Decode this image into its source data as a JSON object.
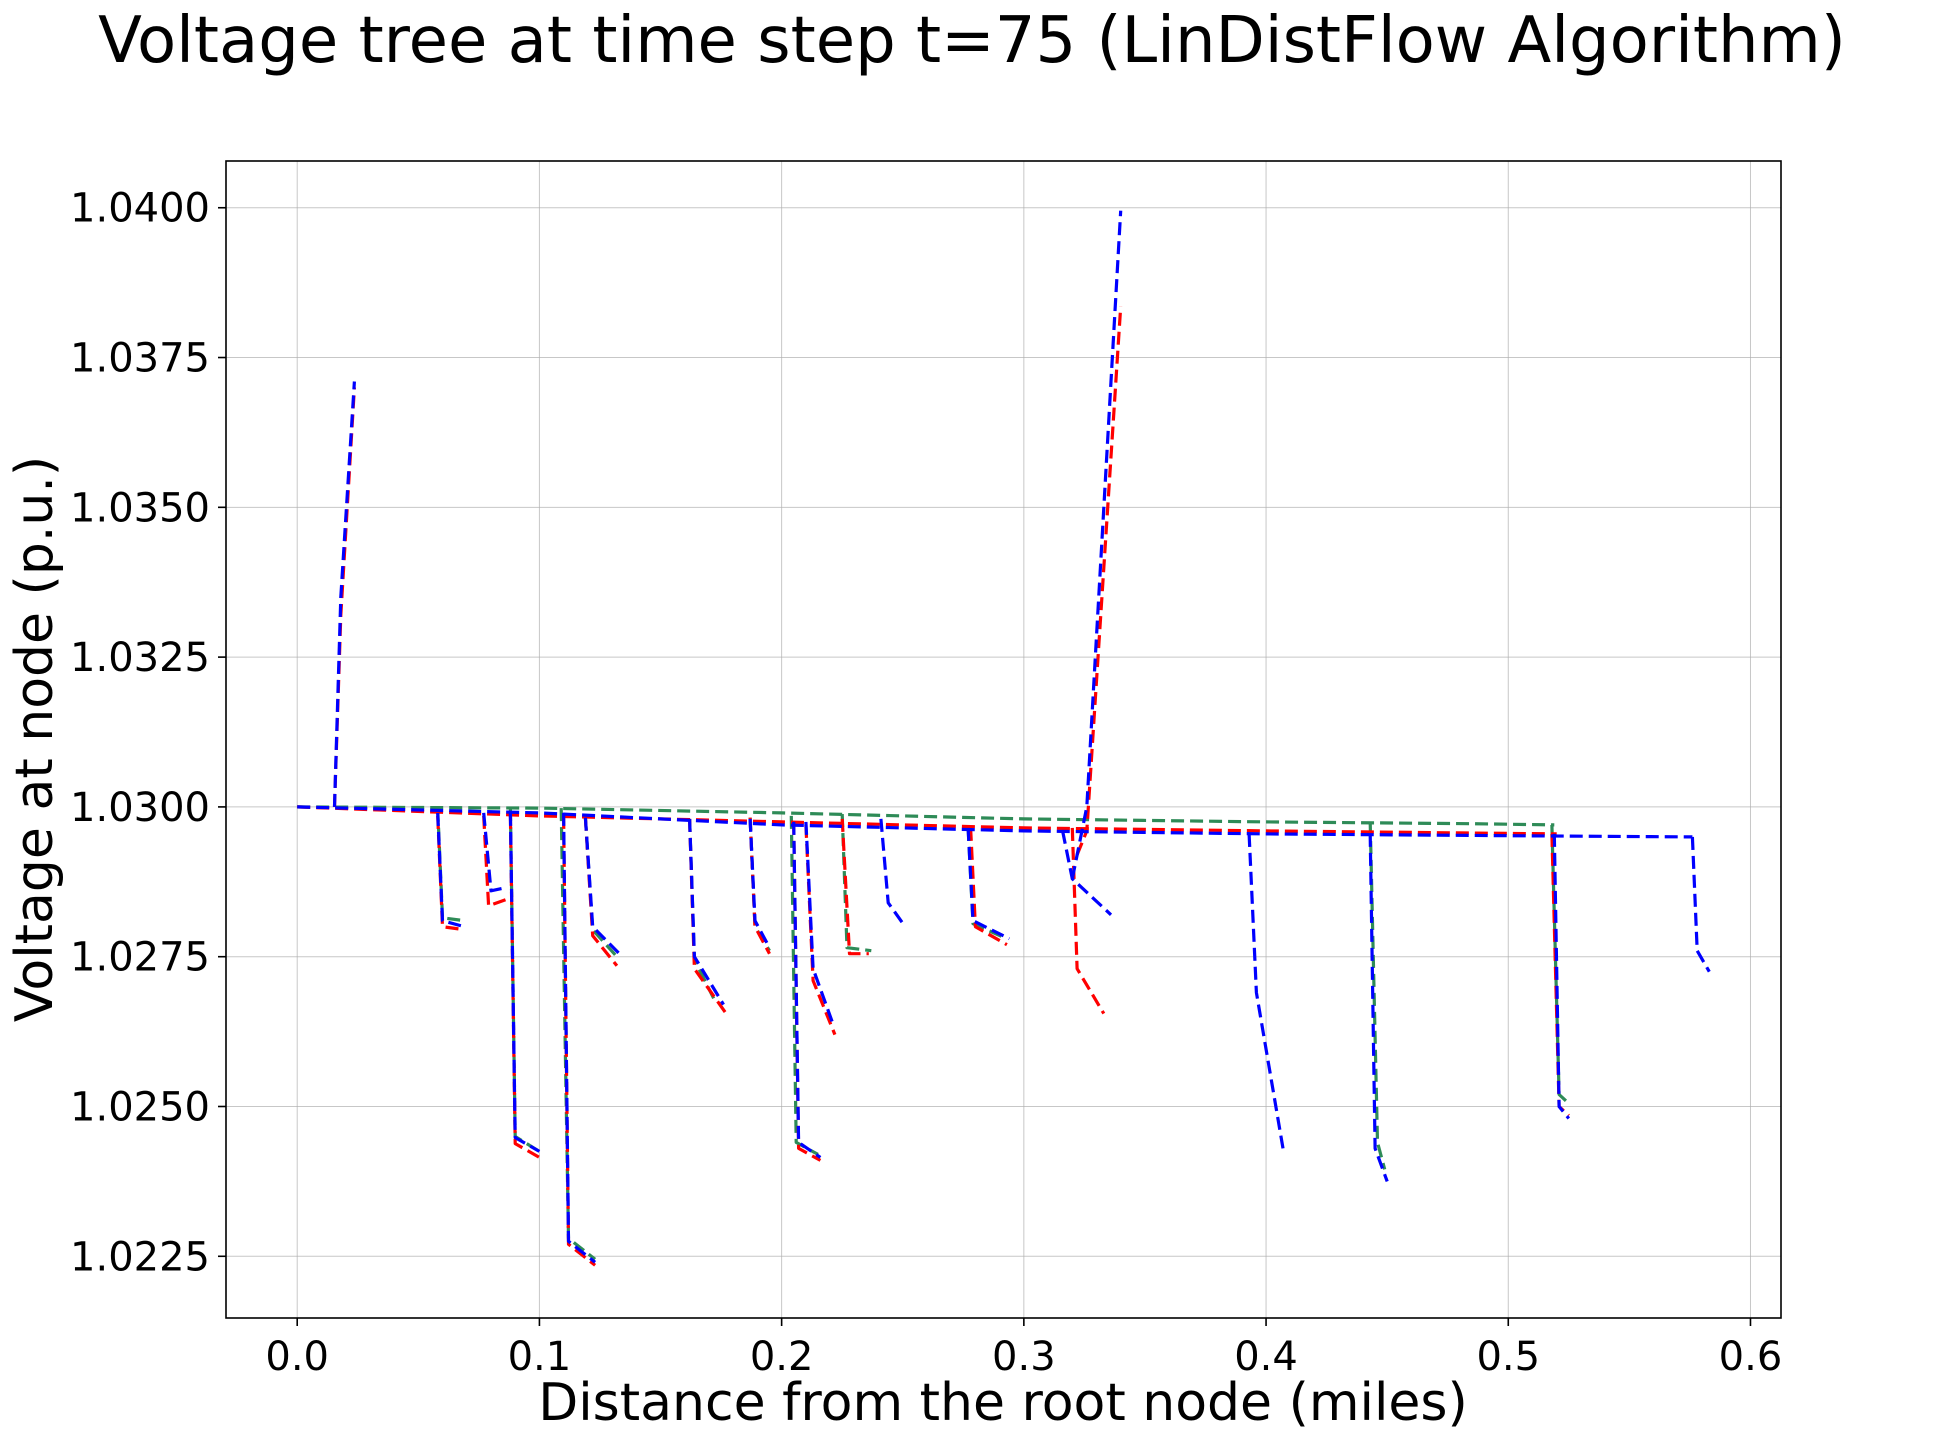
{
  "chart_data": {
    "type": "line",
    "title": "Voltage tree at time step t=75  (LinDistFlow Algorithm)",
    "xlabel": "Distance from the root node (miles)",
    "ylabel": "Voltage at node (p.u.)",
    "xlim": [
      -0.0294,
      0.6126
    ],
    "ylim": [
      1.02147,
      1.04078
    ],
    "xticks": [
      0.0,
      0.1,
      0.2,
      0.3,
      0.4,
      0.5,
      0.6
    ],
    "xtick_labels": [
      "0.0",
      "0.1",
      "0.2",
      "0.3",
      "0.4",
      "0.5",
      "0.6"
    ],
    "yticks": [
      1.0225,
      1.025,
      1.0275,
      1.03,
      1.0325,
      1.035,
      1.0375,
      1.04
    ],
    "ytick_labels": [
      "1.0225",
      "1.0250",
      "1.0275",
      "1.0300",
      "1.0325",
      "1.0350",
      "1.0375",
      "1.0400"
    ],
    "grid": true,
    "line_style": "dashed",
    "colors": {
      "phase_a": "#ff0000",
      "phase_b": "#2e8b57",
      "phase_c": "#0000ff"
    },
    "series": [
      {
        "color": "#2e8b57",
        "segments": [
          [
            [
              0.0,
              1.03
            ],
            [
              0.1,
              1.02998
            ],
            [
              0.2,
              1.0299
            ],
            [
              0.3,
              1.0298
            ],
            [
              0.4,
              1.02975
            ],
            [
              0.485,
              1.02972
            ],
            [
              0.519,
              1.0297
            ]
          ],
          [
            [
              0.058,
              1.02997
            ],
            [
              0.06,
              1.02815
            ],
            [
              0.069,
              1.0281
            ]
          ],
          [
            [
              0.088,
              1.02998
            ],
            [
              0.09,
              1.0245
            ],
            [
              0.1,
              1.02425
            ]
          ],
          [
            [
              0.109,
              1.02998
            ],
            [
              0.112,
              1.0228
            ],
            [
              0.123,
              1.02245
            ]
          ],
          [
            [
              0.119,
              1.02982
            ],
            [
              0.122,
              1.02795
            ],
            [
              0.132,
              1.0275
            ]
          ],
          [
            [
              0.162,
              1.0298
            ],
            [
              0.164,
              1.02745
            ],
            [
              0.172,
              1.0268
            ]
          ],
          [
            [
              0.187,
              1.02982
            ],
            [
              0.189,
              1.028
            ],
            [
              0.195,
              1.0276
            ]
          ],
          [
            [
              0.204,
              1.02985
            ],
            [
              0.206,
              1.0244
            ],
            [
              0.215,
              1.0242
            ]
          ],
          [
            [
              0.225,
              1.02988
            ],
            [
              0.227,
              1.02765
            ],
            [
              0.237,
              1.0276
            ]
          ],
          [
            [
              0.277,
              1.02965
            ],
            [
              0.279,
              1.02805
            ],
            [
              0.293,
              1.0278
            ]
          ],
          [
            [
              0.443,
              1.02975
            ],
            [
              0.446,
              1.0244
            ],
            [
              0.449,
              1.02395
            ]
          ],
          [
            [
              0.518,
              1.0297
            ],
            [
              0.521,
              1.0252
            ],
            [
              0.525,
              1.02505
            ]
          ]
        ]
      },
      {
        "color": "#ff0000",
        "segments": [
          [
            [
              0.0,
              1.03
            ],
            [
              0.1,
              1.02985
            ],
            [
              0.2,
              1.02975
            ],
            [
              0.3,
              1.02965
            ],
            [
              0.4,
              1.0296
            ],
            [
              0.52,
              1.02955
            ]
          ],
          [
            [
              0.0154,
              1.03
            ],
            [
              0.018,
              1.0332
            ],
            [
              0.0236,
              1.037
            ]
          ],
          [
            [
              0.058,
              1.02985
            ],
            [
              0.06,
              1.028
            ],
            [
              0.069,
              1.02795
            ]
          ],
          [
            [
              0.077,
              1.02985
            ],
            [
              0.079,
              1.02835
            ],
            [
              0.086,
              1.02845
            ]
          ],
          [
            [
              0.088,
              1.02985
            ],
            [
              0.09,
              1.02438
            ],
            [
              0.1,
              1.02415
            ]
          ],
          [
            [
              0.11,
              1.02985
            ],
            [
              0.112,
              1.0227
            ],
            [
              0.123,
              1.02235
            ]
          ],
          [
            [
              0.119,
              1.02982
            ],
            [
              0.122,
              1.02785
            ],
            [
              0.132,
              1.02735
            ]
          ],
          [
            [
              0.162,
              1.0298
            ],
            [
              0.164,
              1.0273
            ],
            [
              0.178,
              1.0265
            ]
          ],
          [
            [
              0.187,
              1.02982
            ],
            [
              0.189,
              1.028
            ],
            [
              0.195,
              1.02755
            ]
          ],
          [
            [
              0.205,
              1.02975
            ],
            [
              0.207,
              1.0243
            ],
            [
              0.216,
              1.0241
            ]
          ],
          [
            [
              0.21,
              1.0297
            ],
            [
              0.213,
              1.0271
            ],
            [
              0.222,
              1.0262
            ]
          ],
          [
            [
              0.225,
              1.0298
            ],
            [
              0.228,
              1.02755
            ],
            [
              0.236,
              1.02755
            ]
          ],
          [
            [
              0.278,
              1.02965
            ],
            [
              0.28,
              1.028
            ],
            [
              0.293,
              1.0277
            ]
          ],
          [
            [
              0.32,
              1.02965
            ],
            [
              0.322,
              1.0273
            ],
            [
              0.333,
              1.02655
            ]
          ],
          [
            [
              0.322,
              1.0292
            ],
            [
              0.326,
              1.0296
            ],
            [
              0.34,
              1.03835
            ]
          ],
          [
            [
              0.518,
              1.02955
            ],
            [
              0.521,
              1.025
            ],
            [
              0.525,
              1.02485
            ]
          ]
        ]
      },
      {
        "color": "#0000ff",
        "segments": [
          [
            [
              0.0,
              1.03
            ],
            [
              0.1,
              1.0299
            ],
            [
              0.2,
              1.0297
            ],
            [
              0.3,
              1.0296
            ],
            [
              0.4,
              1.02955
            ],
            [
              0.5,
              1.02952
            ],
            [
              0.576,
              1.0295
            ]
          ],
          [
            [
              0.0154,
              1.03
            ],
            [
              0.018,
              1.0335
            ],
            [
              0.0236,
              1.0371
            ]
          ],
          [
            [
              0.058,
              1.0299
            ],
            [
              0.06,
              1.0281
            ],
            [
              0.069,
              1.028
            ]
          ],
          [
            [
              0.077,
              1.0299
            ],
            [
              0.08,
              1.0286
            ],
            [
              0.086,
              1.02865
            ]
          ],
          [
            [
              0.088,
              1.0299
            ],
            [
              0.09,
              1.02448
            ],
            [
              0.1,
              1.02425
            ]
          ],
          [
            [
              0.11,
              1.0299
            ],
            [
              0.112,
              1.02275
            ],
            [
              0.123,
              1.0224
            ]
          ],
          [
            [
              0.119,
              1.02982
            ],
            [
              0.122,
              1.028
            ],
            [
              0.133,
              1.02755
            ]
          ],
          [
            [
              0.162,
              1.0298
            ],
            [
              0.164,
              1.0275
            ],
            [
              0.176,
              1.0267
            ]
          ],
          [
            [
              0.187,
              1.0298
            ],
            [
              0.189,
              1.0281
            ],
            [
              0.195,
              1.02765
            ]
          ],
          [
            [
              0.205,
              1.02975
            ],
            [
              0.207,
              1.0244
            ],
            [
              0.216,
              1.02415
            ]
          ],
          [
            [
              0.21,
              1.02975
            ],
            [
              0.213,
              1.0273
            ],
            [
              0.221,
              1.0264
            ]
          ],
          [
            [
              0.241,
              1.0298
            ],
            [
              0.244,
              1.0284
            ],
            [
              0.251,
              1.028
            ]
          ],
          [
            [
              0.277,
              1.02965
            ],
            [
              0.279,
              1.0281
            ],
            [
              0.294,
              1.0278
            ]
          ],
          [
            [
              0.316,
              1.0296
            ],
            [
              0.32,
              1.0288
            ],
            [
              0.336,
              1.0282
            ]
          ],
          [
            [
              0.32,
              1.0288
            ],
            [
              0.326,
              1.03
            ],
            [
              0.34,
              1.03995
            ]
          ],
          [
            [
              0.393,
              1.02955
            ],
            [
              0.396,
              1.0269
            ],
            [
              0.407,
              1.0243
            ]
          ],
          [
            [
              0.443,
              1.02955
            ],
            [
              0.445,
              1.0243
            ],
            [
              0.45,
              1.02375
            ]
          ],
          [
            [
              0.519,
              1.02955
            ],
            [
              0.521,
              1.025
            ],
            [
              0.525,
              1.0248
            ]
          ],
          [
            [
              0.576,
              1.0295
            ],
            [
              0.578,
              1.0276
            ],
            [
              0.583,
              1.02725
            ]
          ]
        ]
      }
    ]
  }
}
